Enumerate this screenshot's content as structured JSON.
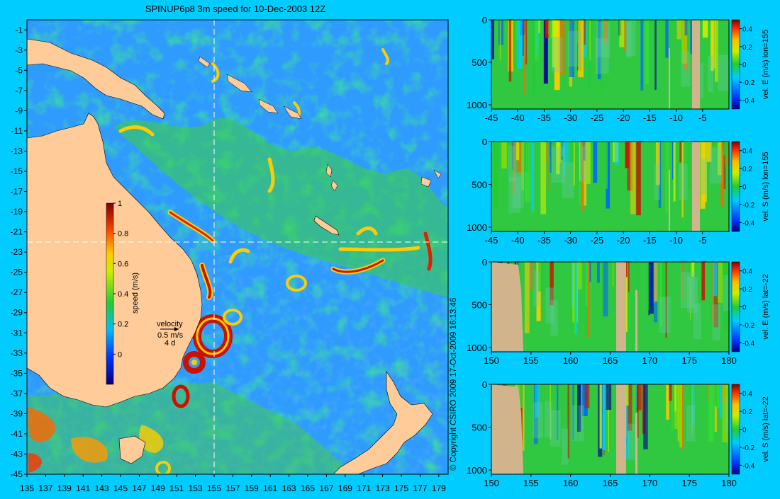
{
  "title": "SPINUP6p8 3m speed for 10-Dec-2003 12Z",
  "copyright": "© Copyright CSIRO 2009   17-Oct-2009 16:13:46",
  "colors": {
    "background": "#00ccff",
    "land": "#ffcc99",
    "section_land": "#d2b48c",
    "ocean_low": "#1a66ff",
    "ocean_mid": "#22cc33",
    "ocean_high": "#ffee00",
    "jet": "#cc1100",
    "crosshair": "#ffffff"
  },
  "map": {
    "x_ticks": [
      135,
      137,
      139,
      141,
      143,
      145,
      147,
      149,
      151,
      153,
      155,
      157,
      159,
      161,
      163,
      165,
      167,
      169,
      171,
      173,
      175,
      177,
      179
    ],
    "y_ticks": [
      -1,
      -3,
      -5,
      -7,
      -9,
      -11,
      -13,
      -15,
      -17,
      -19,
      -21,
      -23,
      -25,
      -27,
      -29,
      -31,
      -33,
      -35,
      -37,
      -39,
      -41,
      -43,
      -45
    ],
    "lon_range": [
      135,
      180
    ],
    "lat_range": [
      -45,
      0
    ],
    "crosshair_lon": 155,
    "crosshair_lat": -22,
    "colorbar": {
      "label": "speed (m/s)",
      "ticks": [
        "1",
        "0.8",
        "0.6",
        "0.4",
        "0.2",
        "0"
      ],
      "range": [
        -0.2,
        1.0
      ]
    },
    "velocity_key": {
      "title": "velocity",
      "speed": "0.5 m/s",
      "duration": "4 d"
    }
  },
  "sections": [
    {
      "label": "vel. E (m/s) lon=155",
      "x_ticks": [
        "-45",
        "-40",
        "-35",
        "-30",
        "-25",
        "-20",
        "-15",
        "-10",
        "-5"
      ],
      "x_values": [
        -45,
        -40,
        -35,
        -30,
        -25,
        -20,
        -15,
        -10,
        -5
      ],
      "x_range": [
        -45,
        0
      ],
      "y_ticks": [
        "0",
        "500",
        "1000"
      ],
      "cbar_ticks": [
        "0.4",
        "0.2",
        "0",
        "-0.2",
        "-0.4"
      ]
    },
    {
      "label": "vel. S (m/s) lon=155",
      "x_ticks": [
        "-45",
        "-40",
        "-35",
        "-30",
        "-25",
        "-20",
        "-15",
        "-10",
        "-5"
      ],
      "x_values": [
        -45,
        -40,
        -35,
        -30,
        -25,
        -20,
        -15,
        -10,
        -5
      ],
      "x_range": [
        -45,
        0
      ],
      "y_ticks": [
        "0",
        "500",
        "1000"
      ],
      "cbar_ticks": [
        "0.4",
        "0.2",
        "0",
        "-0.2",
        "-0.4"
      ]
    },
    {
      "label": "vel. E (m/s) lat=-22",
      "x_ticks": [
        "150",
        "155",
        "160",
        "165",
        "170",
        "175",
        "180"
      ],
      "x_values": [
        150,
        155,
        160,
        165,
        170,
        175,
        180
      ],
      "x_range": [
        150,
        180
      ],
      "y_ticks": [
        "0",
        "500",
        "1000"
      ],
      "cbar_ticks": [
        "0.4",
        "0.2",
        "0",
        "-0.2",
        "-0.4"
      ]
    },
    {
      "label": "vel. S (m/s) lat=-22",
      "x_ticks": [
        "150",
        "155",
        "160",
        "165",
        "170",
        "175",
        "180"
      ],
      "x_values": [
        150,
        155,
        160,
        165,
        170,
        175,
        180
      ],
      "x_range": [
        150,
        180
      ],
      "y_ticks": [
        "0",
        "500",
        "1000"
      ],
      "cbar_ticks": [
        "0.4",
        "0.2",
        "0",
        "-0.2",
        "-0.4"
      ]
    }
  ]
}
